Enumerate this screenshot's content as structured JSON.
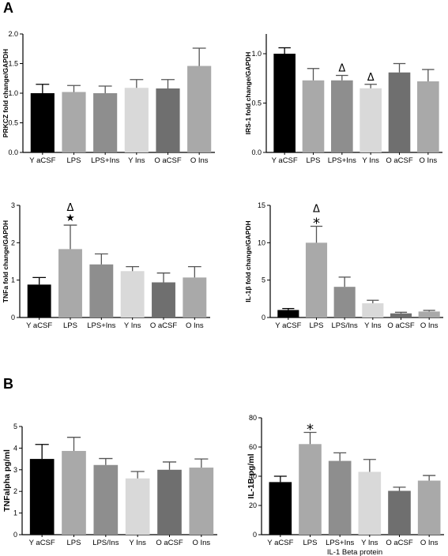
{
  "panel_labels": {
    "a": "A",
    "b": "B"
  },
  "chart_data": [
    {
      "type": "bar",
      "categories": [
        "Y aCSF",
        "LPS",
        "LPS+Ins",
        "Y Ins",
        "O aCSF",
        "O Ins"
      ],
      "values": [
        1.0,
        1.02,
        1.0,
        1.09,
        1.08,
        1.46
      ],
      "errors": [
        0.15,
        0.11,
        0.12,
        0.14,
        0.15,
        0.3
      ],
      "colors": [
        "#000000",
        "#a9a9a9",
        "#8e8e8e",
        "#d9d9d9",
        "#6f6f6f",
        "#a9a9a9"
      ],
      "annotations": [
        "",
        "",
        "",
        "",
        "",
        ""
      ],
      "title": "",
      "xlabel": "",
      "ylabel": "PRKCZ fold change/GAPDH",
      "ylim": [
        0,
        2
      ],
      "yticks": [
        0.0,
        0.5,
        1.0,
        1.5,
        2.0
      ],
      "ytick_labels": [
        "0.0",
        "0.5",
        "1.0",
        "1.5",
        "2.0"
      ],
      "grid": false
    },
    {
      "type": "bar",
      "categories": [
        "Y aCSF",
        "LPS",
        "LPS+Ins",
        "Y Ins",
        "O aCSF",
        "O Ins"
      ],
      "values": [
        1.0,
        0.73,
        0.73,
        0.65,
        0.81,
        0.72
      ],
      "errors": [
        0.06,
        0.12,
        0.05,
        0.04,
        0.09,
        0.12
      ],
      "colors": [
        "#000000",
        "#a9a9a9",
        "#8e8e8e",
        "#d9d9d9",
        "#6f6f6f",
        "#a9a9a9"
      ],
      "annotations": [
        "",
        "",
        "Δ",
        "Δ",
        "",
        ""
      ],
      "title": "",
      "xlabel": "",
      "ylabel": "IRS-1 fold change/GAPDH",
      "ylim": [
        0,
        1.2
      ],
      "yticks": [
        0.0,
        0.5,
        1.0
      ],
      "ytick_labels": [
        "0.0",
        "0.5",
        "1.0"
      ],
      "grid": false
    },
    {
      "type": "bar",
      "categories": [
        "Y aCSF",
        "LPS",
        "LPS+Ins",
        "Y Ins",
        "O aCSF",
        "O Ins"
      ],
      "values": [
        0.88,
        1.83,
        1.42,
        1.24,
        0.94,
        1.07
      ],
      "errors": [
        0.19,
        0.64,
        0.28,
        0.12,
        0.25,
        0.29
      ],
      "colors": [
        "#000000",
        "#a9a9a9",
        "#8e8e8e",
        "#d9d9d9",
        "#6f6f6f",
        "#a9a9a9"
      ],
      "annotations": [
        "",
        "Δ\n★",
        "",
        "",
        "",
        ""
      ],
      "title": "",
      "xlabel": "",
      "ylabel": "TNFa fold change/GAPDH",
      "ylim": [
        0,
        3
      ],
      "yticks": [
        0,
        1,
        2,
        3
      ],
      "ytick_labels": [
        "0",
        "1",
        "2",
        "3"
      ],
      "grid": false
    },
    {
      "type": "bar",
      "categories": [
        "Y aCSF",
        "LPS",
        "LPS/Ins",
        "Y Ins",
        "O aCSF",
        "O Ins"
      ],
      "values": [
        1.0,
        10.0,
        4.1,
        1.9,
        0.55,
        0.8
      ],
      "errors": [
        0.2,
        2.2,
        1.3,
        0.4,
        0.15,
        0.15
      ],
      "colors": [
        "#000000",
        "#a9a9a9",
        "#8e8e8e",
        "#d9d9d9",
        "#6f6f6f",
        "#a9a9a9"
      ],
      "annotations": [
        "",
        "Δ\n*",
        "",
        "",
        "",
        ""
      ],
      "title": "",
      "xlabel": "",
      "ylabel": "IL-1β fold change/GAPDH",
      "ylim": [
        0,
        15
      ],
      "yticks": [
        0,
        5,
        10,
        15
      ],
      "ytick_labels": [
        "0",
        "5",
        "10",
        "15"
      ],
      "grid": false
    },
    {
      "type": "bar",
      "categories": [
        "Y aCSF",
        "LPS",
        "LPS/Ins",
        "Y Ins",
        "O aCSF",
        "O Ins"
      ],
      "values": [
        3.5,
        3.87,
        3.22,
        2.6,
        3.0,
        3.1
      ],
      "errors": [
        0.67,
        0.63,
        0.3,
        0.32,
        0.36,
        0.4
      ],
      "colors": [
        "#000000",
        "#a9a9a9",
        "#8e8e8e",
        "#d9d9d9",
        "#6f6f6f",
        "#a9a9a9"
      ],
      "annotations": [
        "",
        "",
        "",
        "",
        "",
        ""
      ],
      "title": "",
      "xlabel": "",
      "ylabel": "TNFalpha pg/ml",
      "ylim": [
        0,
        5
      ],
      "yticks": [
        0,
        1,
        2,
        3,
        4,
        5
      ],
      "ytick_labels": [
        "0",
        "1",
        "2",
        "3",
        "4",
        "5"
      ],
      "grid": false
    },
    {
      "type": "bar",
      "categories": [
        "Y aCSF",
        "LPS",
        "LPS+Ins",
        "Y Ins",
        "O aCSF",
        "O Ins"
      ],
      "values": [
        36,
        62,
        50.5,
        43,
        30,
        37
      ],
      "errors": [
        4,
        8,
        5.5,
        8.5,
        2.5,
        3.5
      ],
      "colors": [
        "#000000",
        "#a9a9a9",
        "#8e8e8e",
        "#d9d9d9",
        "#6f6f6f",
        "#a9a9a9"
      ],
      "annotations": [
        "",
        "*",
        "",
        "",
        "",
        ""
      ],
      "title": "",
      "xlabel": "IL-1 Beta protein",
      "ylabel": "IL-1B pg/ml",
      "ylim": [
        0,
        80
      ],
      "yticks": [
        0,
        20,
        40,
        60,
        80
      ],
      "ytick_labels": [
        "0",
        "20",
        "40",
        "60",
        "80"
      ],
      "grid": false
    }
  ]
}
